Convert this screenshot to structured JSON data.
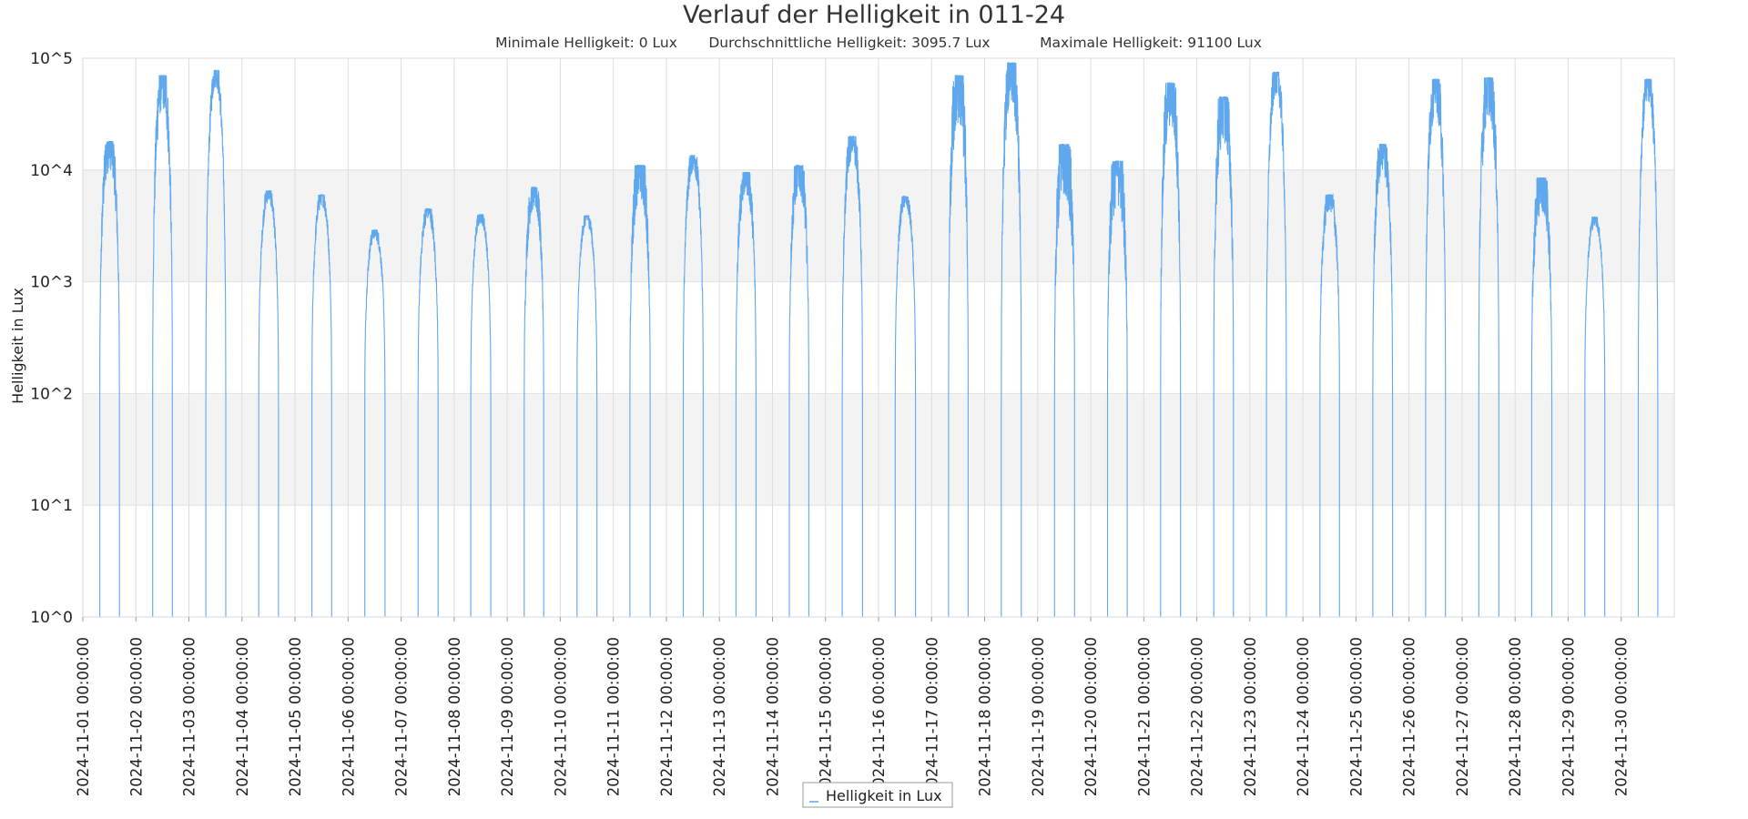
{
  "chart_data": {
    "type": "line",
    "title": "Verlauf der Helligkeit in 011-24",
    "stats": [
      "Minimale Helligkeit: 0 Lux",
      "Durchschnittliche Helligkeit: 3095.7 Lux",
      "Maximale Helligkeit: 91100 Lux"
    ],
    "xlabel": "",
    "ylabel": "Helligkeit in Lux",
    "yscale": "log",
    "ylim": [
      1,
      100000
    ],
    "yticks": [
      "10^0",
      "10^1",
      "10^2",
      "10^3",
      "10^4",
      "10^5"
    ],
    "xlim": [
      "2024-11-01 00:00:00",
      "2024-12-01 00:00:00"
    ],
    "xticks": [
      "2024-11-01 00:00:00",
      "2024-11-02 00:00:00",
      "2024-11-03 00:00:00",
      "2024-11-04 00:00:00",
      "2024-11-05 00:00:00",
      "2024-11-06 00:00:00",
      "2024-11-07 00:00:00",
      "2024-11-08 00:00:00",
      "2024-11-09 00:00:00",
      "2024-11-10 00:00:00",
      "2024-11-11 00:00:00",
      "2024-11-12 00:00:00",
      "2024-11-13 00:00:00",
      "2024-11-14 00:00:00",
      "2024-11-15 00:00:00",
      "2024-11-16 00:00:00",
      "2024-11-17 00:00:00",
      "2024-11-18 00:00:00",
      "2024-11-19 00:00:00",
      "2024-11-20 00:00:00",
      "2024-11-21 00:00:00",
      "2024-11-22 00:00:00",
      "2024-11-23 00:00:00",
      "2024-11-24 00:00:00",
      "2024-11-25 00:00:00",
      "2024-11-26 00:00:00",
      "2024-11-27 00:00:00",
      "2024-11-28 00:00:00",
      "2024-11-29 00:00:00",
      "2024-11-30 00:00:00"
    ],
    "grid": true,
    "legend_position": "bottom-center",
    "series": [
      {
        "name": "Helligkeit in Lux",
        "color": "#5fa8ee",
        "daily": [
          {
            "date": "2024-11-01",
            "peak_lux": 18000,
            "noise": 0.25
          },
          {
            "date": "2024-11-02",
            "peak_lux": 70000,
            "noise": 0.3
          },
          {
            "date": "2024-11-03",
            "peak_lux": 78000,
            "noise": 0.15
          },
          {
            "date": "2024-11-04",
            "peak_lux": 6500,
            "noise": 0.1
          },
          {
            "date": "2024-11-05",
            "peak_lux": 6000,
            "noise": 0.1
          },
          {
            "date": "2024-11-06",
            "peak_lux": 2900,
            "noise": 0.08
          },
          {
            "date": "2024-11-07",
            "peak_lux": 4500,
            "noise": 0.1
          },
          {
            "date": "2024-11-08",
            "peak_lux": 4000,
            "noise": 0.08
          },
          {
            "date": "2024-11-09",
            "peak_lux": 7000,
            "noise": 0.2
          },
          {
            "date": "2024-11-10",
            "peak_lux": 3900,
            "noise": 0.08
          },
          {
            "date": "2024-11-11",
            "peak_lux": 11000,
            "noise": 0.3
          },
          {
            "date": "2024-11-12",
            "peak_lux": 13500,
            "noise": 0.15
          },
          {
            "date": "2024-11-13",
            "peak_lux": 9500,
            "noise": 0.2
          },
          {
            "date": "2024-11-14",
            "peak_lux": 11000,
            "noise": 0.25
          },
          {
            "date": "2024-11-15",
            "peak_lux": 20000,
            "noise": 0.2
          },
          {
            "date": "2024-11-16",
            "peak_lux": 5800,
            "noise": 0.1
          },
          {
            "date": "2024-11-17",
            "peak_lux": 70000,
            "noise": 0.45
          },
          {
            "date": "2024-11-18",
            "peak_lux": 91100,
            "noise": 0.35
          },
          {
            "date": "2024-11-19",
            "peak_lux": 17000,
            "noise": 0.45
          },
          {
            "date": "2024-11-20",
            "peak_lux": 12000,
            "noise": 0.4
          },
          {
            "date": "2024-11-21",
            "peak_lux": 60000,
            "noise": 0.4
          },
          {
            "date": "2024-11-22",
            "peak_lux": 45000,
            "noise": 0.4
          },
          {
            "date": "2024-11-23",
            "peak_lux": 75000,
            "noise": 0.2
          },
          {
            "date": "2024-11-24",
            "peak_lux": 6000,
            "noise": 0.15
          },
          {
            "date": "2024-11-25",
            "peak_lux": 17000,
            "noise": 0.25
          },
          {
            "date": "2024-11-26",
            "peak_lux": 65000,
            "noise": 0.3
          },
          {
            "date": "2024-11-27",
            "peak_lux": 67000,
            "noise": 0.35
          },
          {
            "date": "2024-11-28",
            "peak_lux": 8500,
            "noise": 0.3
          },
          {
            "date": "2024-11-29",
            "peak_lux": 3800,
            "noise": 0.08
          },
          {
            "date": "2024-11-30",
            "peak_lux": 65000,
            "noise": 0.2
          }
        ]
      }
    ]
  }
}
